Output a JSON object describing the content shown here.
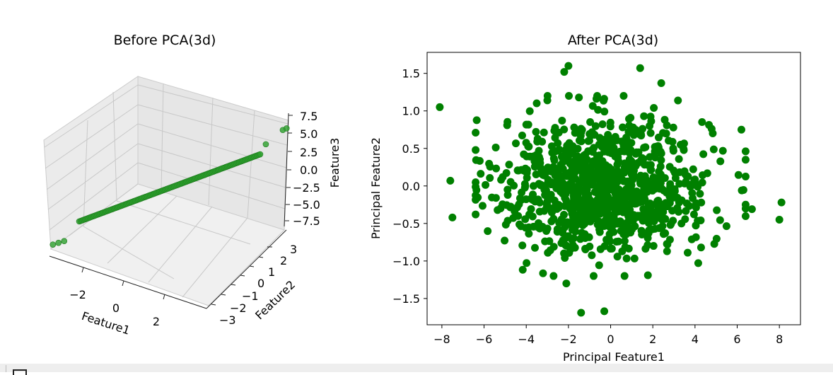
{
  "chart_data": [
    {
      "type": "scatter3d",
      "title": "Before PCA(3d)",
      "xlabel": "Feature1",
      "ylabel": "Feature2",
      "zlabel": "Feature3",
      "x_ticks": [
        "−2",
        "0",
        "2"
      ],
      "y_ticks": [
        "3",
        "2",
        "1",
        "0",
        "−1",
        "−2",
        "−3"
      ],
      "z_ticks": [
        "7.5",
        "5.0",
        "2.5",
        "0.0",
        "−2.5",
        "−5.0",
        "−7.5"
      ],
      "xlim": [
        -3,
        3
      ],
      "ylim": [
        -3.5,
        3.5
      ],
      "zlim": [
        -8,
        8
      ],
      "grid": true,
      "marker_color": "#2ca02c",
      "line_segment": {
        "start": {
          "x": -2.4,
          "y": -2.4,
          "z": -4.0
        },
        "end": {
          "x": 2.4,
          "y": 2.4,
          "z": 4.0
        }
      },
      "endpoint_points": [
        {
          "x": -3.1,
          "y": -3.1,
          "z": -7.1
        },
        {
          "x": -2.95,
          "y": -2.95,
          "z": -6.9
        },
        {
          "x": -2.8,
          "y": -2.8,
          "z": -6.7
        },
        {
          "x": 3.0,
          "y": 3.0,
          "z": 7.3
        },
        {
          "x": 3.1,
          "y": 3.1,
          "z": 7.5
        },
        {
          "x": 2.55,
          "y": 2.55,
          "z": 5.4
        }
      ]
    },
    {
      "type": "scatter",
      "title": "After PCA(3d)",
      "xlabel": "Principal Feature1",
      "ylabel": "Principal Feature2",
      "x_ticks": [
        "−8",
        "−6",
        "−4",
        "−2",
        "0",
        "2",
        "4",
        "6",
        "8"
      ],
      "y_ticks": [
        "1.5",
        "1.0",
        "0.5",
        "0.0",
        "−0.5",
        "−1.0",
        "−1.5"
      ],
      "x_tick_values": [
        -8,
        -6,
        -4,
        -2,
        0,
        2,
        4,
        6,
        8
      ],
      "y_tick_values": [
        1.5,
        1.0,
        0.5,
        0.0,
        -0.5,
        -1.0,
        -1.5
      ],
      "xlim": [
        -8.7,
        9.0
      ],
      "ylim": [
        -1.85,
        1.78
      ],
      "grid": false,
      "marker_color": "#008000",
      "x_spread": 2.5,
      "y_spread": 0.45,
      "cluster_center": [
        -0.3,
        0.0
      ],
      "n_points": 1000,
      "outliers": [
        {
          "x": -8.1,
          "y": 1.05
        },
        {
          "x": -7.6,
          "y": 0.07
        },
        {
          "x": -7.5,
          "y": -0.42
        },
        {
          "x": -2.2,
          "y": 1.52
        },
        {
          "x": -2.0,
          "y": 1.6
        },
        {
          "x": 1.4,
          "y": 1.57
        },
        {
          "x": 2.4,
          "y": 1.37
        },
        {
          "x": -1.4,
          "y": -1.69
        },
        {
          "x": -0.3,
          "y": -1.67
        },
        {
          "x": -2.1,
          "y": -1.3
        },
        {
          "x": 8.1,
          "y": -0.22
        },
        {
          "x": 8.0,
          "y": -0.45
        },
        {
          "x": 6.7,
          "y": -0.31
        },
        {
          "x": 6.2,
          "y": 0.75
        },
        {
          "x": -3.0,
          "y": 1.14
        }
      ]
    }
  ]
}
